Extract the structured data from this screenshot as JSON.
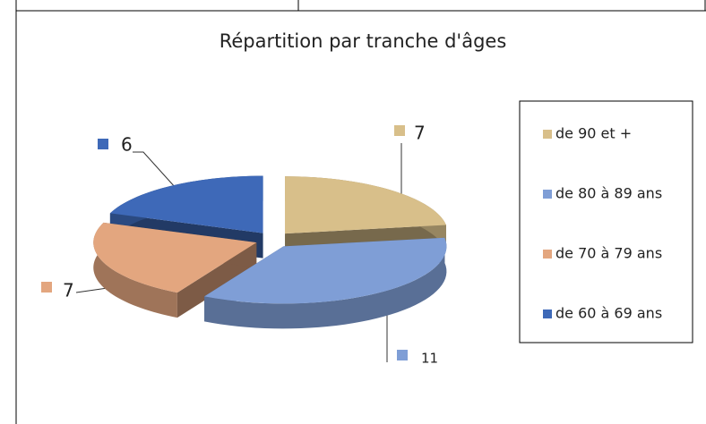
{
  "chart_data": {
    "type": "pie",
    "title": "Répartition par tranche d'âges",
    "categories": [
      "de 90 et +",
      "de 80 à 89 ans",
      "de 70 à 79 ans",
      "de 60 à 69 ans"
    ],
    "values": [
      7,
      11,
      7,
      6
    ],
    "colors": [
      "#d8bf8a",
      "#7f9ed6",
      "#e3a67f",
      "#3e69b8"
    ],
    "legend": "right"
  }
}
